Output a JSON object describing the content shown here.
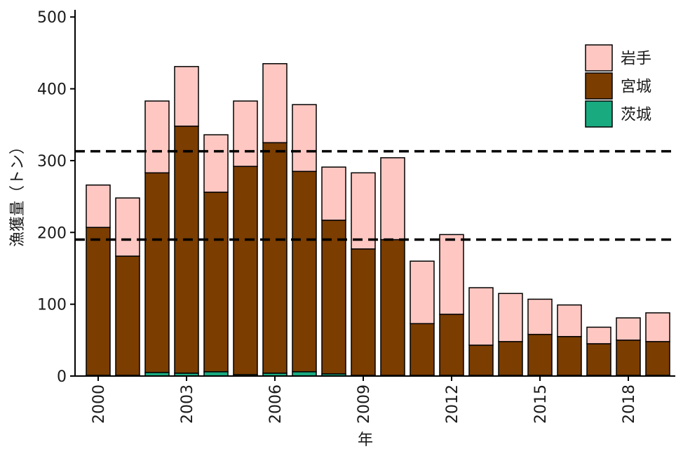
{
  "chart_data": {
    "type": "bar",
    "stacked": true,
    "xlabel": "年",
    "ylabel": "漁獲量（トン）",
    "ylim": [
      0,
      510
    ],
    "yticks": [
      0,
      100,
      200,
      300,
      400,
      500
    ],
    "xticks": [
      2000,
      2003,
      2006,
      2009,
      2012,
      2015,
      2018
    ],
    "categories": [
      2000,
      2001,
      2002,
      2003,
      2004,
      2005,
      2006,
      2007,
      2008,
      2009,
      2010,
      2011,
      2012,
      2013,
      2014,
      2015,
      2016,
      2017,
      2018,
      2019
    ],
    "series": [
      {
        "name": "茨城",
        "color": "#1aaa80",
        "values": [
          1,
          1,
          5,
          4,
          6,
          2,
          4,
          6,
          3,
          1,
          1,
          1,
          1,
          1,
          1,
          1,
          1,
          1,
          1,
          1
        ]
      },
      {
        "name": "宮城",
        "color": "#7b3d00",
        "values": [
          206,
          166,
          278,
          344,
          250,
          290,
          321,
          279,
          214,
          176,
          189,
          72,
          85,
          42,
          47,
          57,
          54,
          44,
          49,
          47
        ]
      },
      {
        "name": "岩手",
        "color": "#ffc7c2",
        "values": [
          59,
          81,
          100,
          83,
          80,
          91,
          110,
          93,
          74,
          106,
          114,
          87,
          111,
          80,
          67,
          49,
          44,
          23,
          31,
          40
        ]
      }
    ],
    "legend_order": [
      "岩手",
      "宮城",
      "茨城"
    ],
    "legend_position": "top-right",
    "reference_lines": [
      {
        "value": 313,
        "style": "dashed"
      },
      {
        "value": 190,
        "style": "dashed"
      }
    ],
    "grid": false
  }
}
